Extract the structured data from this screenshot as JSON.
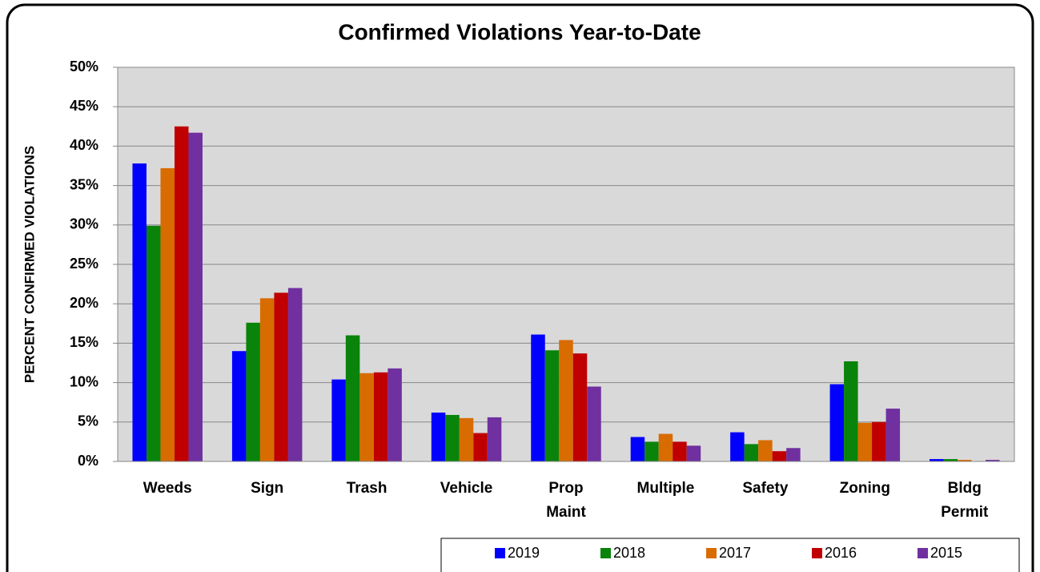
{
  "chart_data": {
    "type": "bar",
    "title": "Confirmed Violations Year-to-Date",
    "y_label": "PERCENT CONFIRMED VIOLATIONS",
    "categories": [
      "Weeds",
      "Sign",
      "Trash",
      "Vehicle",
      "Prop Maint",
      "Multiple",
      "Safety",
      "Zoning",
      "Bldg Permit"
    ],
    "series": [
      {
        "name": "2019",
        "color": "#0000ff",
        "values": [
          37.8,
          14.0,
          10.4,
          6.2,
          16.1,
          3.1,
          3.7,
          9.8,
          0.3
        ]
      },
      {
        "name": "2018",
        "color": "#0a830a",
        "values": [
          29.9,
          17.6,
          16.0,
          5.9,
          14.1,
          2.5,
          2.2,
          12.7,
          0.3
        ]
      },
      {
        "name": "2017",
        "color": "#d86c00",
        "values": [
          37.2,
          20.7,
          11.2,
          5.5,
          15.4,
          3.5,
          2.7,
          4.9,
          0.2
        ]
      },
      {
        "name": "2016",
        "color": "#c00000",
        "values": [
          42.5,
          21.4,
          11.3,
          3.6,
          13.7,
          2.5,
          1.3,
          5.0,
          0.0
        ]
      },
      {
        "name": "2015",
        "color": "#7030a0",
        "values": [
          41.7,
          22.0,
          11.8,
          5.6,
          9.5,
          2.0,
          1.7,
          6.7,
          0.2
        ]
      }
    ],
    "ylim": [
      0,
      50
    ],
    "yticks": [
      {
        "value": 0,
        "label": "0%"
      },
      {
        "value": 5,
        "label": "5%"
      },
      {
        "value": 10,
        "label": "10%"
      },
      {
        "value": 15,
        "label": "15%"
      },
      {
        "value": 20,
        "label": "20%"
      },
      {
        "value": 25,
        "label": "25%"
      },
      {
        "value": 30,
        "label": "30%"
      },
      {
        "value": 35,
        "label": "35%"
      },
      {
        "value": 40,
        "label": "40%"
      },
      {
        "value": 45,
        "label": "45%"
      },
      {
        "value": 50,
        "label": "50%"
      }
    ],
    "grid": true,
    "legend": "bottom"
  }
}
